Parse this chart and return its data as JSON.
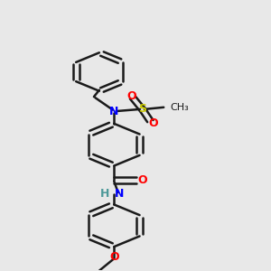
{
  "bg_color": "#e8e8e8",
  "bond_color": "#1a1a1a",
  "N_color": "#0000ff",
  "O_color": "#ff0000",
  "S_color": "#cccc00",
  "H_color": "#4d9999",
  "line_width": 1.8,
  "figsize": [
    3.0,
    3.0
  ],
  "dpi": 100,
  "xlim": [
    0,
    10
  ],
  "ylim": [
    -1,
    13
  ]
}
